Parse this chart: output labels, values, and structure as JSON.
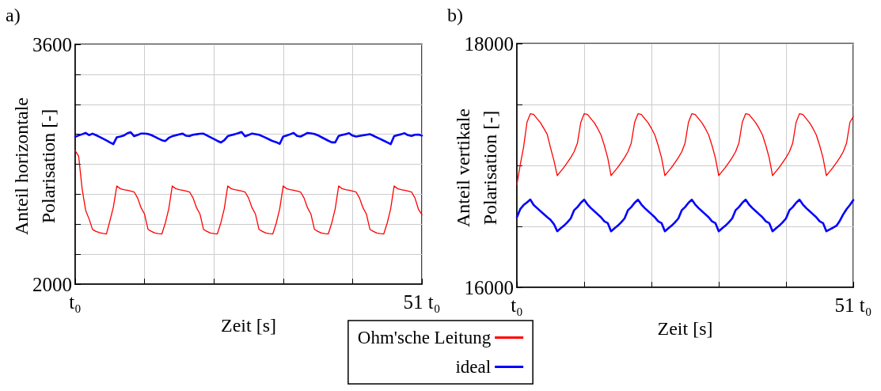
{
  "chart_data": [
    {
      "type": "line",
      "title": "a)",
      "xlabel": "Zeit [s]",
      "ylabel": "Anteil horizontale\nPolarisation [-]",
      "categories": [
        "t₀",
        null,
        null,
        null,
        null,
        null,
        null,
        null,
        null,
        null,
        null,
        null,
        null,
        null,
        null,
        null,
        null,
        null,
        null,
        null,
        null,
        null,
        null,
        null,
        null,
        null,
        null,
        null,
        null,
        null,
        null,
        null,
        null,
        null,
        null,
        null,
        null,
        null,
        null,
        null,
        null,
        null,
        null,
        null,
        null,
        null,
        null,
        null,
        null,
        null,
        null,
        null,
        null,
        null,
        null,
        null,
        null,
        null,
        null,
        null,
        null,
        null,
        null,
        null,
        null,
        null,
        null,
        null,
        null,
        null,
        null,
        null,
        null,
        null,
        null,
        null,
        null,
        null,
        null,
        null,
        null,
        null,
        null,
        null,
        null,
        null,
        null,
        null,
        null,
        null,
        null,
        null,
        null,
        null,
        null,
        null,
        null,
        null,
        null,
        null,
        "51 t₀"
      ],
      "ylim": [
        2000,
        3600
      ],
      "yticks": [
        2000,
        {
          "value": 2200,
          "label": null
        },
        {
          "value": 2400,
          "label": null
        },
        {
          "value": 2600,
          "label": null
        },
        {
          "value": 2800,
          "label": null
        },
        {
          "value": 3000,
          "label": null
        },
        {
          "value": 3200,
          "label": null
        },
        {
          "value": 3400,
          "label": null
        },
        3600
      ],
      "grid": true,
      "legend": "bottom",
      "line_style": "solid",
      "series": [
        {
          "name": "Ohm'sche Leitung",
          "color": "#ff0000",
          "values": [
            2890,
            2853,
            2636,
            2494,
            2435,
            2365,
            2352,
            2344,
            2339,
            2335,
            2421,
            2513,
            2655,
            2637,
            2630,
            2626,
            2621,
            2615,
            2575,
            2510,
            2467,
            2366,
            2352,
            2341,
            2337,
            2335,
            2408,
            2504,
            2655,
            2637,
            2630,
            2626,
            2621,
            2615,
            2575,
            2510,
            2467,
            2366,
            2352,
            2341,
            2337,
            2335,
            2408,
            2504,
            2655,
            2637,
            2630,
            2626,
            2621,
            2615,
            2575,
            2510,
            2467,
            2366,
            2352,
            2341,
            2337,
            2335,
            2408,
            2504,
            2655,
            2637,
            2630,
            2626,
            2621,
            2615,
            2575,
            2510,
            2467,
            2366,
            2352,
            2341,
            2337,
            2335,
            2408,
            2504,
            2655,
            2637,
            2630,
            2626,
            2621,
            2615,
            2575,
            2510,
            2467,
            2366,
            2352,
            2341,
            2337,
            2335,
            2408,
            2504,
            2655,
            2637,
            2630,
            2626,
            2621,
            2615,
            2575,
            2500,
            2464
          ]
        },
        {
          "name": "ideal",
          "color": "#0000ff",
          "values": [
            2983,
            2992,
            3000,
            3009,
            2994,
            3004,
            2994,
            2983,
            2971,
            2959,
            2946,
            2934,
            2980,
            2985,
            2991,
            3006,
            3014,
            2987,
            2995,
            3005,
            3005,
            3002,
            2994,
            2983,
            2971,
            2960,
            2955,
            2976,
            2987,
            2993,
            2999,
            3004,
            2990,
            2988,
            2997,
            3000,
            3003,
            3004,
            2992,
            2980,
            2968,
            2956,
            2945,
            2960,
            2987,
            2994,
            3000,
            3007,
            3015,
            2986,
            2995,
            3005,
            3001,
            2997,
            2987,
            2976,
            2965,
            2954,
            2947,
            2936,
            2985,
            2991,
            3000,
            3009,
            2989,
            2985,
            2996,
            3009,
            3006,
            3002,
            2993,
            2981,
            2969,
            2957,
            2946,
            2946,
            2989,
            2995,
            3001,
            3007,
            2991,
            2985,
            2989,
            2993,
            2997,
            3001,
            2990,
            2979,
            2968,
            2957,
            2946,
            2934,
            2987,
            2994,
            3000,
            3007,
            2994,
            2989,
            2997,
            2998,
            2992
          ]
        }
      ]
    },
    {
      "type": "line",
      "title": "b)",
      "xlabel": "Zeit [s]",
      "ylabel": "Anteil vertikale\nPolarisation [-]",
      "categories": [
        "t₀",
        null,
        null,
        null,
        null,
        null,
        null,
        null,
        null,
        null,
        null,
        null,
        null,
        null,
        null,
        null,
        null,
        null,
        null,
        null,
        null,
        null,
        null,
        null,
        null,
        null,
        null,
        null,
        null,
        null,
        null,
        null,
        null,
        null,
        null,
        null,
        null,
        null,
        null,
        null,
        null,
        null,
        null,
        null,
        null,
        null,
        null,
        null,
        null,
        null,
        null,
        null,
        null,
        null,
        null,
        null,
        null,
        null,
        null,
        null,
        null,
        null,
        null,
        null,
        null,
        null,
        null,
        null,
        null,
        null,
        null,
        null,
        null,
        null,
        null,
        null,
        null,
        null,
        null,
        null,
        null,
        null,
        null,
        null,
        null,
        null,
        null,
        null,
        null,
        null,
        null,
        null,
        null,
        null,
        null,
        null,
        null,
        null,
        null,
        null,
        "51 t₀"
      ],
      "ylim": [
        16000,
        18000
      ],
      "yticks": [
        16000,
        {
          "value": 16500,
          "label": null
        },
        {
          "value": 17000,
          "label": null
        },
        {
          "value": 17500,
          "label": null
        },
        18000
      ],
      "grid": true,
      "line_style": "solid",
      "series": [
        {
          "color": "#ff0000",
          "values": [
            16843,
            17006,
            17152,
            17354,
            17424,
            17418,
            17384,
            17350,
            17304,
            17256,
            17145,
            17041,
            16917,
            16950,
            16984,
            17024,
            17064,
            17112,
            17184,
            17354,
            17424,
            17418,
            17384,
            17350,
            17304,
            17250,
            17164,
            17062,
            16917,
            16950,
            16984,
            17024,
            17064,
            17112,
            17184,
            17354,
            17424,
            17418,
            17384,
            17350,
            17304,
            17250,
            17164,
            17062,
            16917,
            16950,
            16984,
            17024,
            17064,
            17112,
            17184,
            17354,
            17424,
            17418,
            17384,
            17350,
            17304,
            17250,
            17164,
            17062,
            16917,
            16950,
            16984,
            17024,
            17064,
            17112,
            17184,
            17354,
            17424,
            17418,
            17384,
            17350,
            17304,
            17250,
            17164,
            17062,
            16917,
            16950,
            16984,
            17024,
            17064,
            17112,
            17184,
            17354,
            17424,
            17418,
            17384,
            17350,
            17304,
            17250,
            17164,
            17062,
            16917,
            16950,
            16984,
            17024,
            17064,
            17112,
            17184,
            17354,
            17400
          ]
        },
        {
          "color": "#0000ff",
          "values": [
            16575,
            16642,
            16675,
            16697,
            16720,
            16675,
            16650,
            16625,
            16601,
            16576,
            16554,
            16519,
            16460,
            16484,
            16506,
            16533,
            16565,
            16632,
            16658,
            16693,
            16719,
            16680,
            16650,
            16625,
            16600,
            16575,
            16541,
            16527,
            16460,
            16484,
            16506,
            16533,
            16565,
            16632,
            16658,
            16693,
            16719,
            16680,
            16650,
            16625,
            16600,
            16575,
            16541,
            16527,
            16460,
            16484,
            16506,
            16533,
            16565,
            16632,
            16658,
            16693,
            16719,
            16680,
            16650,
            16625,
            16600,
            16575,
            16541,
            16527,
            16460,
            16484,
            16506,
            16533,
            16565,
            16632,
            16658,
            16693,
            16719,
            16680,
            16650,
            16625,
            16600,
            16575,
            16541,
            16527,
            16460,
            16484,
            16506,
            16533,
            16565,
            16632,
            16658,
            16693,
            16719,
            16680,
            16650,
            16625,
            16600,
            16575,
            16541,
            16527,
            16460,
            16475,
            16490,
            16505,
            16546,
            16598,
            16641,
            16675,
            16716
          ]
        }
      ]
    }
  ]
}
